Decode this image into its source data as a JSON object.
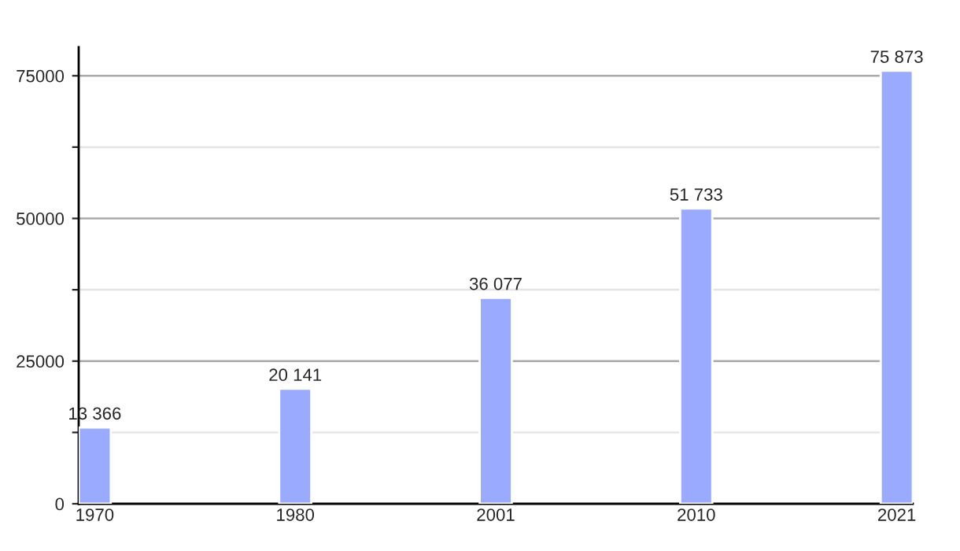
{
  "chart_data": {
    "type": "bar",
    "categories": [
      "1970",
      "1980",
      "2001",
      "2010",
      "2021"
    ],
    "values": [
      13366,
      20141,
      36077,
      51733,
      75873
    ],
    "value_labels": [
      "13 366",
      "20 141",
      "36 077",
      "51 733",
      "75 873"
    ],
    "color": "#99aaff",
    "ylim": [
      0,
      80000
    ],
    "yticks": [
      0,
      {
        "value": 12500,
        "label": null
      },
      25000,
      {
        "value": 37500,
        "label": null
      },
      50000,
      {
        "value": 62500,
        "label": null
      },
      75000
    ],
    "grid": "y"
  }
}
